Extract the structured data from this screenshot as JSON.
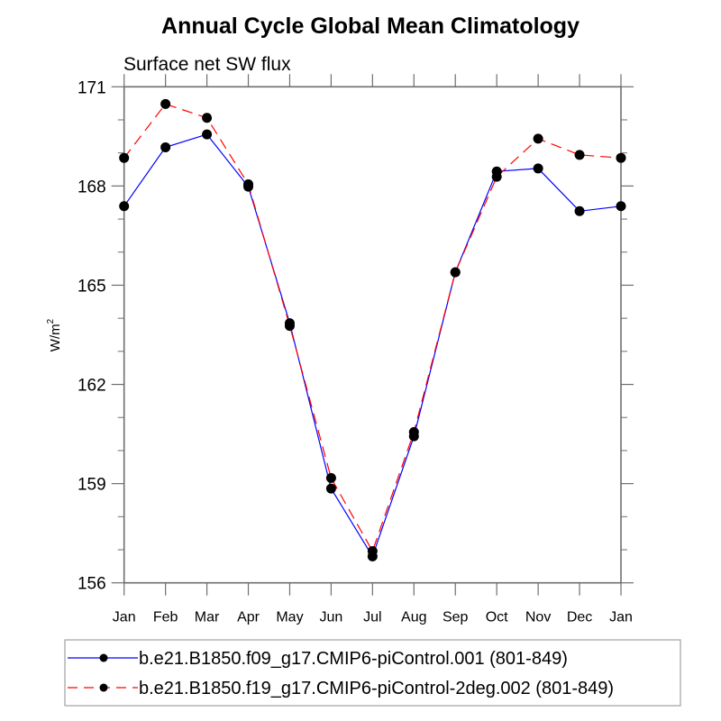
{
  "chart_data": {
    "type": "line",
    "title": "Annual Cycle Global Mean Climatology",
    "subtitle": "Surface net SW flux",
    "xlabel": "",
    "ylabel": "W/m",
    "ylabel_superscript": "2",
    "categories": [
      "Jan",
      "Feb",
      "Mar",
      "Apr",
      "May",
      "Jun",
      "Jul",
      "Aug",
      "Sep",
      "Oct",
      "Nov",
      "Dec",
      "Jan"
    ],
    "ylim": [
      156,
      171
    ],
    "yticks": [
      156,
      159,
      162,
      165,
      168,
      171
    ],
    "ytick_labels": [
      "156",
      "159",
      "162",
      "165",
      "168",
      "171"
    ],
    "y_minor_step": 1,
    "grid": false,
    "legend_position": "bottom",
    "series": [
      {
        "name": "b.e21.B1850.f09_g17.CMIP6-piControl.001 (801-849)",
        "color": "#0000ff",
        "line_style": "solid",
        "marker": "filled-circle",
        "marker_color": "#000000",
        "values": [
          167.39,
          169.17,
          169.56,
          167.98,
          163.85,
          158.85,
          156.8,
          160.43,
          165.39,
          168.44,
          168.53,
          167.24,
          167.39
        ]
      },
      {
        "name": "b.e21.B1850.f19_g17.CMIP6-piControl-2deg.002 (801-849)",
        "color": "#ff0000",
        "line_style": "dashed",
        "marker": "filled-circle",
        "marker_color": "#000000",
        "values": [
          168.85,
          170.48,
          170.06,
          168.05,
          163.77,
          159.17,
          156.96,
          160.56,
          165.39,
          168.28,
          169.43,
          168.94,
          168.85
        ]
      }
    ]
  }
}
